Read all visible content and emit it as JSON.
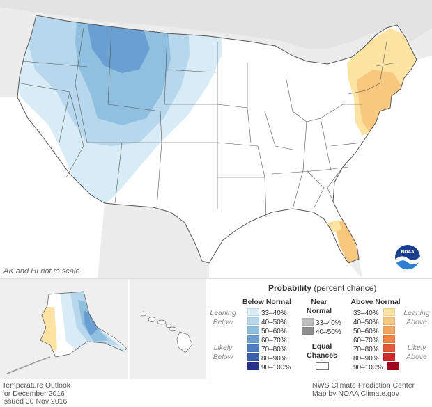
{
  "map": {
    "scale_note": "AK and HI not to scale",
    "logo_text": "NOAA"
  },
  "legend": {
    "title_bold": "Probability",
    "title_rest": " (percent chance)",
    "below": {
      "heading": "Below Normal",
      "side_top": [
        "Leaning",
        "Below"
      ],
      "side_bottom": [
        "Likely",
        "Below"
      ],
      "items": [
        {
          "label": "33–40%",
          "color": "#d7ecf6"
        },
        {
          "label": "40–50%",
          "color": "#b7d8ec"
        },
        {
          "label": "50–60%",
          "color": "#8fc0e0"
        },
        {
          "label": "60–70%",
          "color": "#6a9fd1"
        },
        {
          "label": "70–80%",
          "color": "#4f7fc1"
        },
        {
          "label": "80–90%",
          "color": "#3a5fae"
        },
        {
          "label": "90–100%",
          "color": "#27328d"
        }
      ]
    },
    "near": {
      "heading": [
        "Near",
        "Normal"
      ],
      "items": [
        {
          "label": "33–40%",
          "color": "#bdbdbd"
        },
        {
          "label": "40–50%",
          "color": "#8e8e8e"
        }
      ]
    },
    "equal": {
      "heading": [
        "Equal",
        "Chances"
      ],
      "color": "#ffffff"
    },
    "above": {
      "heading": "Above Normal",
      "side_top": [
        "Leaning",
        "Above"
      ],
      "side_bottom": [
        "Likely",
        "Above"
      ],
      "items": [
        {
          "label": "33–40%",
          "color": "#fde3a2"
        },
        {
          "label": "40–50%",
          "color": "#f8c87f"
        },
        {
          "label": "50–60%",
          "color": "#f3a65c"
        },
        {
          "label": "60–70%",
          "color": "#ef8646"
        },
        {
          "label": "70–80%",
          "color": "#e35a37"
        },
        {
          "label": "80–90%",
          "color": "#cf2d2a"
        },
        {
          "label": "90–100%",
          "color": "#a0071f"
        }
      ]
    }
  },
  "footer": {
    "left": [
      "Temperature Outlook",
      "for December 2016",
      "Issued 30 Nov 2016"
    ],
    "right": [
      "NWS Climate Prediction Center",
      "Map by NOAA Climate.gov"
    ]
  }
}
